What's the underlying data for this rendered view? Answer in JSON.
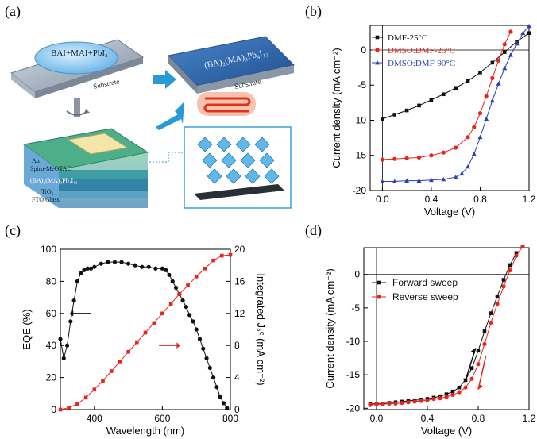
{
  "panels": {
    "a": {
      "label": "(a)",
      "drop_text": "BAI+MAI+PbI₂",
      "substrate": "Substrate",
      "film_formula": "(BA)₂(MA)₃Pb₄I₁₃",
      "substrate2": "Substrate",
      "device_layers": [
        "Au",
        "Spiro-MeOTAD",
        "(BA)₂(MA)₃Pb₄I₁₃",
        "TiO₂",
        "FTO Glass"
      ],
      "colors": {
        "arrow": "#2a9ad6",
        "film": "#2560a8",
        "heater": "#e8522a"
      }
    },
    "b": {
      "label": "(b)"
    },
    "c": {
      "label": "(c)"
    },
    "d": {
      "label": "(d)"
    }
  },
  "chart_data": [
    {
      "id": "b",
      "type": "line",
      "xlabel": "Voltage (V)",
      "ylabel": "Current density (mA cm⁻²)",
      "xlim": [
        -0.1,
        1.2
      ],
      "ylim": [
        -20,
        3.5
      ],
      "xticks": [
        0.0,
        0.4,
        0.8,
        1.2
      ],
      "xtick_labels": [
        "0.0",
        "0.4",
        "0.8",
        "1.2"
      ],
      "yticks": [
        0,
        -5,
        -10,
        -15,
        -20
      ],
      "ytick_labels": [
        "0",
        "-5",
        "-10",
        "-15",
        "-20"
      ],
      "legend": "top-right",
      "series": [
        {
          "name": "DMF-25°C",
          "color": "#111111",
          "marker": "square",
          "x": [
            0,
            0.1,
            0.2,
            0.3,
            0.4,
            0.5,
            0.6,
            0.7,
            0.8,
            0.9,
            1.0,
            1.1,
            1.2
          ],
          "y": [
            -9.8,
            -9.2,
            -8.6,
            -7.9,
            -7.1,
            -6.3,
            -5.4,
            -4.4,
            -3.2,
            -1.8,
            -0.3,
            1.2,
            2.4
          ]
        },
        {
          "name": "DMSO:DMF-25°C",
          "color": "#e8241c",
          "marker": "circle",
          "x": [
            0,
            0.1,
            0.2,
            0.3,
            0.4,
            0.5,
            0.6,
            0.7,
            0.75,
            0.8,
            0.85,
            0.9,
            0.95,
            1.0,
            1.05,
            1.1
          ],
          "y": [
            -15.6,
            -15.5,
            -15.4,
            -15.3,
            -15.0,
            -14.6,
            -13.9,
            -12.4,
            -11.0,
            -9.0,
            -6.6,
            -4.0,
            -1.5,
            0.8,
            2.6,
            4.0
          ]
        },
        {
          "name": "DMSO:DMF-90°C",
          "color": "#2a3fb8",
          "marker": "triangle",
          "x": [
            0,
            0.1,
            0.2,
            0.3,
            0.4,
            0.5,
            0.6,
            0.65,
            0.7,
            0.75,
            0.8,
            0.85,
            0.9,
            0.95,
            1.0,
            1.05,
            1.1,
            1.15,
            1.2
          ],
          "y": [
            -18.7,
            -18.7,
            -18.6,
            -18.6,
            -18.5,
            -18.4,
            -18.1,
            -17.6,
            -16.6,
            -14.8,
            -12.4,
            -9.8,
            -7.2,
            -4.8,
            -2.6,
            -0.7,
            0.9,
            2.4,
            3.4
          ]
        }
      ]
    },
    {
      "id": "c",
      "type": "line",
      "xlabel": "Wavelength (nm)",
      "ylabel": "EQE (%)",
      "y2label": "Integrated Jₛᶜ (mA cm⁻²)",
      "xlim": [
        300,
        800
      ],
      "ylim": [
        0,
        100
      ],
      "y2lim": [
        0,
        20
      ],
      "xticks": [
        400,
        600,
        800
      ],
      "yticks": [
        0,
        20,
        40,
        60,
        80,
        100
      ],
      "y2ticks": [
        0,
        4,
        8,
        12,
        16,
        20
      ],
      "series": [
        {
          "name": "EQE",
          "color": "#111111",
          "marker": "circle",
          "axis": "left",
          "x": [
            300,
            310,
            320,
            330,
            340,
            350,
            360,
            370,
            380,
            390,
            400,
            420,
            440,
            460,
            480,
            500,
            520,
            540,
            560,
            580,
            600,
            610,
            620,
            630,
            640,
            650,
            660,
            670,
            680,
            690,
            700,
            710,
            720,
            730,
            740,
            750,
            760,
            770,
            780,
            790
          ],
          "y": [
            44,
            32,
            40,
            55,
            68,
            80,
            85,
            87,
            88,
            88,
            89,
            91,
            92,
            92,
            92,
            91,
            90,
            89,
            89,
            88,
            88,
            87,
            84,
            80,
            76,
            72,
            68,
            64,
            59,
            55,
            50,
            44,
            38,
            32,
            26,
            20,
            14,
            8,
            4,
            1
          ]
        },
        {
          "name": "Integrated Jsc",
          "color": "#e8241c",
          "marker": "square",
          "axis": "right",
          "x": [
            300,
            325,
            350,
            375,
            400,
            425,
            450,
            475,
            500,
            525,
            550,
            575,
            600,
            625,
            650,
            675,
            700,
            725,
            750,
            775,
            800
          ],
          "y": [
            0,
            0.25,
            0.7,
            1.5,
            2.5,
            3.6,
            4.8,
            6.0,
            7.2,
            8.4,
            9.6,
            10.8,
            12.0,
            13.2,
            14.4,
            15.5,
            16.6,
            17.6,
            18.6,
            19.2,
            19.3
          ]
        }
      ]
    },
    {
      "id": "d",
      "type": "line",
      "xlabel": "Voltage (V)",
      "ylabel": "Current density (mA cm⁻²)",
      "xlim": [
        -0.1,
        1.2
      ],
      "ylim": [
        -20.2,
        4
      ],
      "xticks": [
        0.0,
        0.4,
        0.8,
        1.2
      ],
      "xtick_labels": [
        "0.0",
        "0.4",
        "0.8",
        "1.2"
      ],
      "yticks": [
        0,
        -5,
        -10,
        -15,
        -20
      ],
      "ytick_labels": [
        "0",
        "-5",
        "-10",
        "-15",
        "-20"
      ],
      "legend": "left",
      "series": [
        {
          "name": "Forward sweep",
          "color": "#111111",
          "marker": "square",
          "x": [
            -0.05,
            0,
            0.05,
            0.1,
            0.15,
            0.2,
            0.25,
            0.3,
            0.35,
            0.4,
            0.45,
            0.5,
            0.55,
            0.6,
            0.65,
            0.7,
            0.75,
            0.8,
            0.85,
            0.9,
            0.95,
            1.0,
            1.05,
            1.1,
            1.15
          ],
          "y": [
            -19.4,
            -19.3,
            -19.3,
            -19.2,
            -19.1,
            -19.0,
            -18.9,
            -18.8,
            -18.7,
            -18.6,
            -18.4,
            -18.2,
            -17.9,
            -17.5,
            -16.9,
            -15.8,
            -14.0,
            -11.4,
            -8.5,
            -5.8,
            -3.3,
            -0.8,
            1.4,
            3.2,
            4.6
          ]
        },
        {
          "name": "Reverse sweep",
          "color": "#e8241c",
          "marker": "circle",
          "x": [
            -0.05,
            0,
            0.05,
            0.1,
            0.15,
            0.2,
            0.25,
            0.3,
            0.35,
            0.4,
            0.45,
            0.5,
            0.55,
            0.6,
            0.65,
            0.7,
            0.75,
            0.8,
            0.85,
            0.9,
            0.95,
            1.0,
            1.05,
            1.1,
            1.15
          ],
          "y": [
            -19.5,
            -19.4,
            -19.4,
            -19.3,
            -19.3,
            -19.2,
            -19.1,
            -19.0,
            -18.9,
            -18.8,
            -18.6,
            -18.5,
            -18.3,
            -18.0,
            -17.6,
            -16.9,
            -15.6,
            -13.4,
            -10.4,
            -7.2,
            -4.4,
            -1.8,
            0.6,
            2.8,
            4.2
          ]
        }
      ]
    }
  ]
}
